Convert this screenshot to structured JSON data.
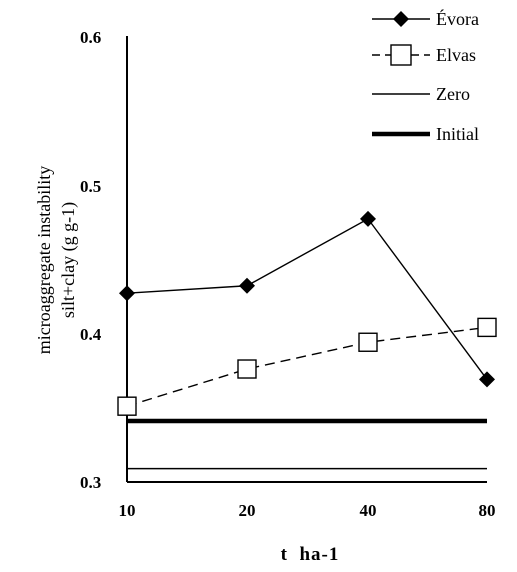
{
  "chart_data": {
    "type": "line",
    "categories": [
      "10",
      "20",
      "40",
      "80"
    ],
    "ylim": [
      0.3,
      0.6
    ],
    "yticks": [
      "0.3",
      "0.4",
      "0.5",
      "0.6"
    ],
    "xlabel": "t  ha-1",
    "ylabel_line1": "microaggregate instability",
    "ylabel_line2": "silt+clay (g g-1)",
    "legend_position": "top-right",
    "series": [
      {
        "name": "Évora",
        "values": [
          0.427,
          0.432,
          0.477,
          0.369
        ],
        "marker": "filled-diamond",
        "style": "solid",
        "color": "#000000"
      },
      {
        "name": "Elvas",
        "values": [
          0.351,
          0.376,
          0.394,
          0.404
        ],
        "marker": "open-square",
        "style": "dashed",
        "color": "#000000"
      }
    ],
    "reference_lines": [
      {
        "name": "Zero",
        "value": 0.309,
        "style": "thin"
      },
      {
        "name": "Initial",
        "value": 0.341,
        "style": "thick"
      }
    ]
  }
}
